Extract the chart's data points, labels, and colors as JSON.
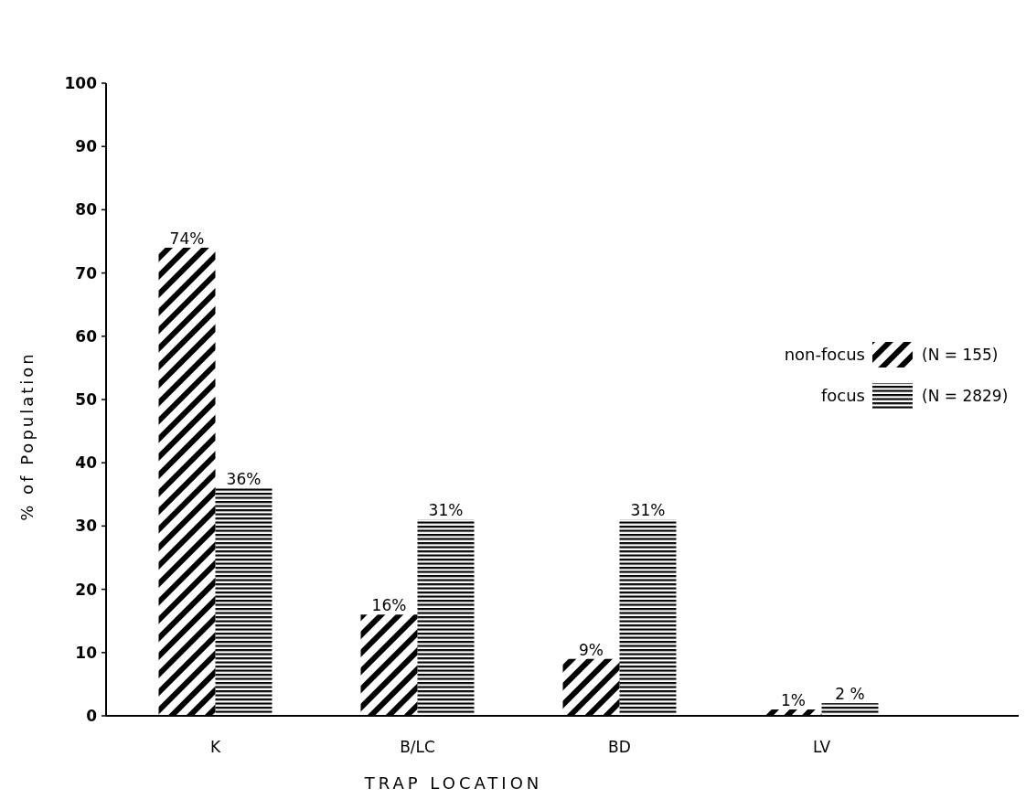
{
  "chart_data": {
    "type": "bar",
    "xlabel": "TRAP LOCATION",
    "ylabel": "% of Population",
    "categories": [
      "K",
      "B/LC",
      "BD",
      "LV"
    ],
    "series": [
      {
        "name": "non-focus",
        "color": "#000000",
        "values": [
          74,
          16,
          9,
          1
        ],
        "value_labels": [
          "74%",
          "16%",
          "9%",
          "1%"
        ]
      },
      {
        "name": "focus",
        "color": "#000000",
        "values": [
          36,
          31,
          31,
          2
        ],
        "value_labels": [
          "36%",
          "31%",
          "31%",
          "2 %"
        ]
      }
    ],
    "ylim": [
      0,
      100
    ],
    "yticks": [
      0,
      10,
      20,
      30,
      40,
      50,
      60,
      70,
      80,
      90,
      100
    ],
    "grid": false,
    "legend": "right",
    "annotations": [
      "(N = 155)",
      "(N = 2829)"
    ]
  }
}
